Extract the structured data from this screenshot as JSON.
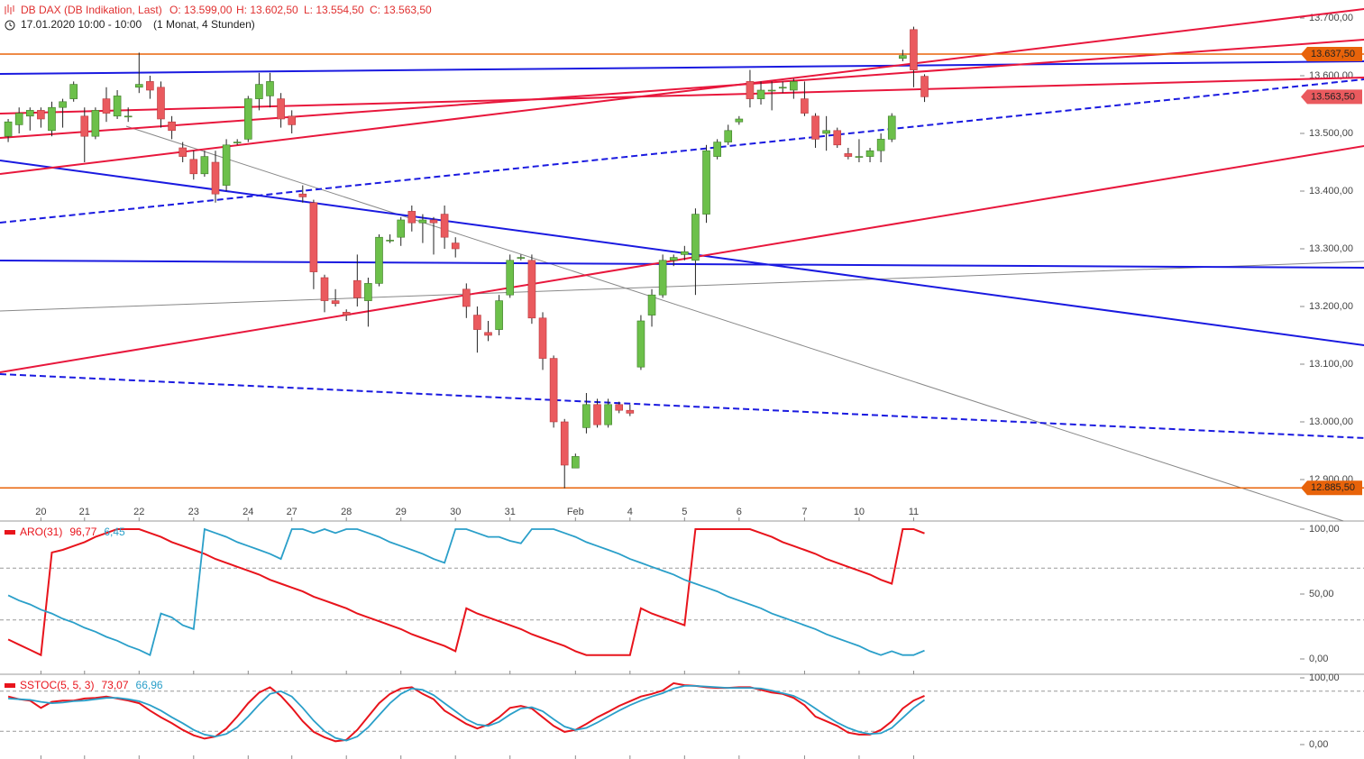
{
  "chart_data": [
    {
      "type": "candlestick",
      "title": "DB DAX (DB Indikation, Last)",
      "ohlc_labels": [
        "O: 13.599,00",
        "H: 13.602,50",
        "L: 13.554,50",
        "C: 13.563,50"
      ],
      "subtitle": "17.01.2020 10:00 - 10:00",
      "period": "(1 Monat, 4 Stunden)",
      "up_color": "#6cc04a",
      "down_color": "#ea5a5e",
      "open": [
        13495,
        13515,
        13530,
        13540,
        13505,
        13545,
        13560,
        13530,
        13495,
        13560,
        13530,
        13530,
        13580,
        13590,
        13580,
        13520,
        13475,
        13455,
        13430,
        13450,
        13410,
        13485,
        13490,
        13560,
        13565,
        13560,
        13530,
        13395,
        13380,
        13250,
        13210,
        13190,
        13245,
        13210,
        13240,
        13315,
        13320,
        13365,
        13345,
        13350,
        13360,
        13310,
        13230,
        13185,
        13155,
        13160,
        13220,
        13285,
        13280,
        13180,
        13110,
        13000,
        12920,
        12990,
        13030,
        12995,
        13030,
        13020,
        13095,
        13185,
        13220,
        13280,
        13290,
        13280,
        13360,
        13460,
        13485,
        13520,
        13590,
        13560,
        13575,
        13580,
        13575,
        13560,
        13530,
        13500,
        13505,
        13465,
        13460,
        13460,
        13470,
        13490,
        13630,
        13680,
        13599
      ],
      "high": [
        13525,
        13545,
        13545,
        13545,
        13555,
        13560,
        13590,
        13545,
        13545,
        13580,
        13575,
        13545,
        13640,
        13600,
        13590,
        13530,
        13485,
        13470,
        13470,
        13470,
        13490,
        13490,
        13565,
        13605,
        13605,
        13570,
        13540,
        13410,
        13385,
        13255,
        13230,
        13195,
        13290,
        13250,
        13325,
        13325,
        13355,
        13375,
        13360,
        13355,
        13375,
        13320,
        13240,
        13200,
        13175,
        13220,
        13290,
        13290,
        13290,
        13190,
        13115,
        13005,
        12945,
        13050,
        13040,
        13040,
        13035,
        13030,
        13185,
        13230,
        13290,
        13290,
        13305,
        13370,
        13480,
        13490,
        13515,
        13530,
        13610,
        13590,
        13590,
        13590,
        13595,
        13590,
        13535,
        13530,
        13510,
        13475,
        13490,
        13475,
        13500,
        13535,
        13645,
        13685,
        13602.5
      ],
      "low": [
        13485,
        13500,
        13505,
        13510,
        13495,
        13510,
        13555,
        13450,
        13490,
        13520,
        13525,
        13520,
        13570,
        13560,
        13510,
        13490,
        13450,
        13420,
        13425,
        13380,
        13400,
        13480,
        13485,
        13540,
        13545,
        13510,
        13500,
        13380,
        13230,
        13190,
        13200,
        13175,
        13200,
        13165,
        13235,
        13310,
        13305,
        13330,
        13310,
        13290,
        13300,
        13285,
        13180,
        13120,
        13140,
        13150,
        13215,
        13280,
        13170,
        13090,
        12990,
        12885,
        12920,
        12980,
        12990,
        12990,
        13015,
        13010,
        13090,
        13165,
        13215,
        13270,
        13280,
        13220,
        13345,
        13455,
        13480,
        13515,
        13545,
        13550,
        13540,
        13570,
        13560,
        13530,
        13475,
        13470,
        13475,
        13455,
        13450,
        13450,
        13450,
        13485,
        13625,
        13580,
        13554.5
      ],
      "close": [
        13520,
        13535,
        13540,
        13525,
        13545,
        13555,
        13585,
        13495,
        13540,
        13535,
        13565,
        13530,
        13585,
        13575,
        13525,
        13505,
        13460,
        13430,
        13460,
        13395,
        13480,
        13485,
        13560,
        13585,
        13590,
        13525,
        13515,
        13390,
        13260,
        13210,
        13205,
        13185,
        13215,
        13240,
        13320,
        13315,
        13350,
        13345,
        13350,
        13345,
        13320,
        13300,
        13200,
        13160,
        13150,
        13210,
        13280,
        13285,
        13180,
        13110,
        13000,
        12925,
        12940,
        13030,
        12995,
        13030,
        13020,
        13015,
        13175,
        13220,
        13280,
        13285,
        13295,
        13360,
        13470,
        13485,
        13505,
        13525,
        13560,
        13575,
        13575,
        13580,
        13590,
        13535,
        13490,
        13505,
        13480,
        13460,
        13460,
        13470,
        13490,
        13530,
        13635,
        13610,
        13563.5
      ],
      "xlim": [
        -0.75,
        118.25
      ],
      "ylim": [
        12828.1,
        13731.25
      ],
      "xticks": [
        {
          "value": 3,
          "label": "20"
        },
        {
          "value": 7,
          "label": "21"
        },
        {
          "value": 12,
          "label": "22"
        },
        {
          "value": 17,
          "label": "23"
        },
        {
          "value": 22,
          "label": "24"
        },
        {
          "value": 26,
          "label": "27"
        },
        {
          "value": 31,
          "label": "28"
        },
        {
          "value": 36,
          "label": "29"
        },
        {
          "value": 41,
          "label": "30"
        },
        {
          "value": 46,
          "label": "31"
        },
        {
          "value": 52,
          "label": "Feb"
        },
        {
          "value": 57,
          "label": "4"
        },
        {
          "value": 62,
          "label": "5"
        },
        {
          "value": 67,
          "label": "6"
        },
        {
          "value": 73,
          "label": "7"
        },
        {
          "value": 78,
          "label": "10"
        },
        {
          "value": 83,
          "label": "11"
        }
      ],
      "yticks": [
        {
          "value": 12900,
          "label": "12.900,00"
        },
        {
          "value": 13000,
          "label": "13.000,00"
        },
        {
          "value": 13100,
          "label": "13.100,00"
        },
        {
          "value": 13200,
          "label": "13.200,00"
        },
        {
          "value": 13300,
          "label": "13.300,00"
        },
        {
          "value": 13400,
          "label": "13.400,00"
        },
        {
          "value": 13500,
          "label": "13.500,00"
        },
        {
          "value": 13600,
          "label": "13.600,00"
        },
        {
          "value": 13700,
          "label": "13.700,00"
        }
      ],
      "price_labels": [
        {
          "value": 13637.5,
          "label": "13.637,50",
          "color": "#e8630a",
          "line": true
        },
        {
          "value": 13563.5,
          "label": "13.563,50",
          "color": "#ea5a5e",
          "line": false
        },
        {
          "value": 12885.5,
          "label": "12.885,50",
          "color": "#e8630a",
          "line": true
        }
      ],
      "trendlines": [
        {
          "color": "#888888",
          "width": 1,
          "dash": false,
          "x": [
            -0.75,
            124.3
          ],
          "y": [
            13192.2,
            13278.1
          ]
        },
        {
          "color": "#888888",
          "width": 1,
          "dash": false,
          "x": [
            10.82,
            122.4
          ],
          "y": [
            13512.5,
            12828.1
          ]
        },
        {
          "color": "#1a1ae0",
          "width": 2,
          "dash": false,
          "x": [
            -0.75,
            124.3
          ],
          "y": [
            13603.1,
            13625
          ]
        },
        {
          "color": "#1a1ae0",
          "width": 2,
          "dash": false,
          "x": [
            -0.75,
            124.3
          ],
          "y": [
            13453.1,
            13132.8
          ]
        },
        {
          "color": "#1a1ae0",
          "width": 2,
          "dash": false,
          "x": [
            -0.75,
            124.3
          ],
          "y": [
            13279.7,
            13267.2
          ]
        },
        {
          "color": "#1a1ae0",
          "width": 2,
          "dash": true,
          "x": [
            -0.75,
            124.3
          ],
          "y": [
            13345.3,
            13593.8
          ]
        },
        {
          "color": "#1a1ae0",
          "width": 2,
          "dash": true,
          "x": [
            -0.75,
            124.3
          ],
          "y": [
            13082.8,
            12971.9
          ]
        },
        {
          "color": "#e8173c",
          "width": 2,
          "dash": false,
          "x": [
            -0.75,
            124.3
          ],
          "y": [
            13429.7,
            13715.6
          ]
        },
        {
          "color": "#e8173c",
          "width": 2,
          "dash": false,
          "x": [
            -0.75,
            124.3
          ],
          "y": [
            13492.2,
            13662.5
          ]
        },
        {
          "color": "#e8173c",
          "width": 2,
          "dash": false,
          "x": [
            -0.75,
            124.3
          ],
          "y": [
            13534.4,
            13596.9
          ]
        },
        {
          "color": "#e8173c",
          "width": 2,
          "dash": false,
          "x": [
            -0.75,
            124.3
          ],
          "y": [
            13085.9,
            13478.1
          ]
        }
      ]
    },
    {
      "type": "line",
      "title": "ARO(31)",
      "xlim": [
        -0.75,
        118.25
      ],
      "ylim": [
        -11.8,
        106.25
      ],
      "yticks": [
        {
          "value": 0,
          "label": "0,00"
        },
        {
          "value": 50,
          "label": "50,00"
        },
        {
          "value": 100,
          "label": "100,00"
        }
      ],
      "reference_lines": [
        30,
        70
      ],
      "series": [
        {
          "color": "#e8141c",
          "last_value_label": "96,77",
          "values": [
            15,
            11,
            7,
            3,
            82,
            84,
            87,
            90,
            94,
            97,
            100,
            100,
            100,
            97,
            94,
            90,
            87,
            84,
            81,
            77,
            74,
            71,
            68,
            65,
            61,
            58,
            55,
            52,
            48,
            45,
            42,
            39,
            35,
            32,
            29,
            26,
            23,
            19,
            16,
            13,
            10,
            6,
            39,
            35,
            32,
            29,
            26,
            23,
            19,
            16,
            13,
            10,
            6,
            3,
            3,
            3,
            3,
            3,
            39,
            35,
            32,
            29,
            26,
            100,
            100,
            100,
            100,
            100,
            100,
            97,
            94,
            90,
            87,
            84,
            81,
            77,
            74,
            71,
            68,
            65,
            61,
            58,
            100,
            100,
            96.77
          ]
        },
        {
          "color": "#2a9fc9",
          "last_value_label": "6,45",
          "values": [
            49,
            45,
            42,
            38,
            35,
            31,
            28,
            24,
            21,
            17,
            14,
            10,
            7,
            3,
            35,
            32,
            26,
            23,
            100,
            97,
            94,
            90,
            87,
            84,
            81,
            77,
            100,
            100,
            97,
            100,
            97,
            100,
            100,
            97,
            94,
            90,
            87,
            84,
            81,
            77,
            74,
            100,
            100,
            97,
            94,
            94,
            91,
            89,
            100,
            100,
            100,
            97,
            94,
            90,
            87,
            84,
            81,
            77,
            74,
            71,
            68,
            65,
            61,
            58,
            55,
            52,
            48,
            45,
            42,
            39,
            35,
            32,
            29,
            26,
            23,
            19,
            16,
            13,
            10,
            6,
            3,
            6,
            3,
            3,
            6.45
          ]
        }
      ]
    },
    {
      "type": "line",
      "title": "SSTOC(5, 5, 3)",
      "xlim": [
        -0.75,
        118.25
      ],
      "ylim": [
        -21.6,
        105.4
      ],
      "yticks": [
        {
          "value": 0,
          "label": "0,00"
        },
        {
          "value": 100,
          "label": "100,00"
        }
      ],
      "reference_lines": [
        20,
        80
      ],
      "series": [
        {
          "color": "#e8141c",
          "last_value_label": "73,07",
          "values": [
            72,
            68,
            66,
            55,
            64,
            66,
            66,
            69,
            70,
            72,
            69,
            66,
            62,
            51,
            41,
            32,
            22,
            14,
            9,
            12,
            24,
            42,
            62,
            78,
            86,
            73,
            55,
            35,
            19,
            11,
            5,
            7,
            22,
            42,
            62,
            76,
            84,
            86,
            76,
            68,
            51,
            41,
            31,
            24,
            30,
            41,
            55,
            58,
            54,
            41,
            28,
            19,
            22,
            31,
            41,
            49,
            58,
            65,
            72,
            76,
            81,
            92,
            89,
            88,
            86,
            85,
            85,
            86,
            86,
            82,
            78,
            76,
            70,
            59,
            42,
            35,
            28,
            18,
            15,
            15,
            22,
            35,
            54,
            66,
            73.07
          ]
        },
        {
          "color": "#2a9fc9",
          "last_value_label": "66,96",
          "values": [
            69,
            68,
            67,
            64,
            62,
            63,
            65,
            66,
            68,
            70,
            70,
            68,
            65,
            59,
            51,
            41,
            32,
            22,
            15,
            12,
            16,
            26,
            42,
            60,
            76,
            80,
            72,
            55,
            36,
            20,
            10,
            6,
            12,
            26,
            44,
            62,
            76,
            84,
            82,
            74,
            62,
            50,
            38,
            30,
            28,
            34,
            45,
            54,
            56,
            50,
            38,
            27,
            22,
            25,
            33,
            42,
            51,
            59,
            66,
            72,
            77,
            84,
            88,
            88,
            87,
            86,
            85,
            85,
            85,
            84,
            81,
            77,
            73,
            65,
            54,
            43,
            33,
            25,
            19,
            16,
            17,
            25,
            40,
            55,
            66.96
          ]
        }
      ]
    }
  ]
}
